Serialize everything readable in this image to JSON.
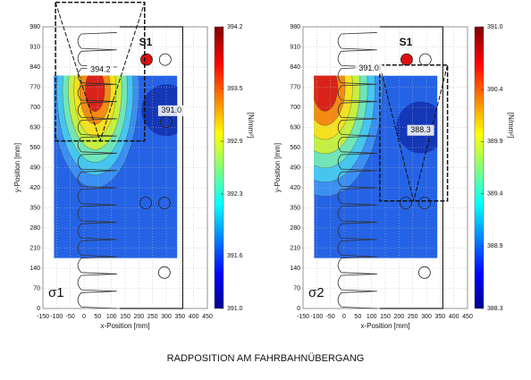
{
  "chart_data": [
    {
      "type": "contour",
      "label": "σ1",
      "marker_label": "S1",
      "xlabel": "x-Position [mm]",
      "ylabel": "y-Position [mm]",
      "xlim": [
        -150,
        450
      ],
      "xticks": [
        -150,
        -100,
        -50,
        0,
        50,
        100,
        150,
        200,
        250,
        300,
        350,
        400,
        450
      ],
      "ylim": [
        0,
        980
      ],
      "yticks": [
        0,
        70,
        140,
        210,
        280,
        350,
        420,
        490,
        560,
        630,
        700,
        770,
        840,
        910,
        980
      ],
      "grid": true,
      "colorbar": {
        "label": "[N/mm²]",
        "lim": [
          391.0,
          394.2
        ],
        "ticks": [
          {
            "value": 391.0,
            "label": "391.0"
          },
          391.6,
          392.3,
          392.9,
          393.5,
          394.2
        ]
      },
      "annotations": [
        {
          "text": "394.2",
          "x": 60,
          "y": 830
        },
        {
          "text": "391.0",
          "x": 319,
          "y": 688
        }
      ]
    },
    {
      "type": "contour",
      "label": "σ2",
      "marker_label": "S1",
      "xlabel": "x-Position [mm]",
      "ylabel": "y-Position [mm]",
      "xlim": [
        -150,
        450
      ],
      "xticks": [
        -150,
        -100,
        -50,
        0,
        50,
        100,
        150,
        200,
        250,
        300,
        350,
        400,
        450
      ],
      "ylim": [
        0,
        980
      ],
      "yticks": [
        0,
        70,
        140,
        210,
        280,
        350,
        420,
        490,
        560,
        630,
        700,
        770,
        840,
        910,
        980
      ],
      "grid": true,
      "colorbar": {
        "label": "[N/mm²]",
        "lim": [
          388.3,
          391.0
        ],
        "ticks": [
          388.3,
          388.9,
          389.4,
          389.9,
          390.4,
          {
            "value": 391.0,
            "label": "391.0"
          }
        ]
      },
      "annotations": [
        {
          "text": "391.0",
          "x": 90,
          "y": 835
        },
        {
          "text": "388.3",
          "x": 279,
          "y": 620
        }
      ]
    }
  ],
  "caption": "RADPOSITION AM FAHRBAHNÜBERGANG"
}
